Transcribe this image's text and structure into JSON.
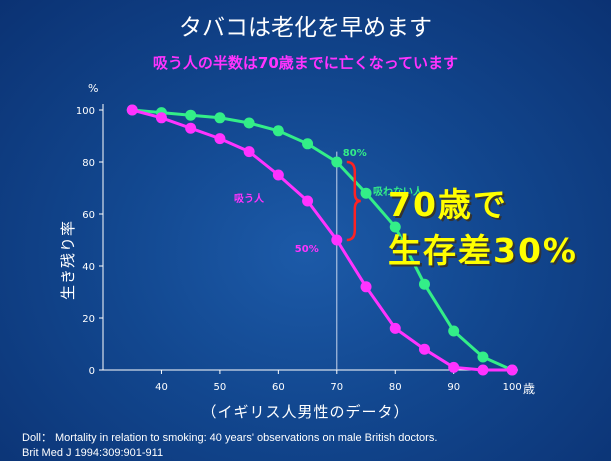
{
  "title": "タバコは老化を早めます",
  "subtitle": "吸う人の半数は70歳までに亡くなっています",
  "big_text": [
    "70歳で",
    "生存差30%"
  ],
  "note": "（イギリス人男性のデータ）",
  "source": [
    "Doll：  Mortality in relation to smoking: 40 years' observations on male British doctors.",
    "Brit Med J 1994:309:901-911"
  ],
  "colors": {
    "nonsmoker": "#33ee88",
    "smoker": "#ff33ff",
    "bracket": "#ff2222",
    "highlight": "#ffff00",
    "background": "#12478f"
  },
  "chart_data": {
    "type": "line",
    "ylabel": "生き残り率",
    "yunit": "%",
    "xunit": "歳",
    "xlim": [
      30,
      101
    ],
    "ylim": [
      0,
      100
    ],
    "xticks": [
      40,
      50,
      60,
      70,
      80,
      90,
      100
    ],
    "yticks": [
      0,
      20,
      40,
      60,
      80,
      100
    ],
    "grid": false,
    "series": [
      {
        "name": "吸わない人",
        "x": [
          35,
          40,
          45,
          50,
          55,
          60,
          65,
          70,
          75,
          80,
          85,
          90,
          95,
          100
        ],
        "y": [
          100,
          99,
          98,
          97,
          95,
          92,
          87,
          80,
          68,
          55,
          33,
          15,
          5,
          0
        ]
      },
      {
        "name": "吸う人",
        "x": [
          35,
          40,
          45,
          50,
          55,
          60,
          65,
          70,
          75,
          80,
          85,
          90,
          95,
          100
        ],
        "y": [
          100,
          97,
          93,
          89,
          84,
          75,
          65,
          50,
          32,
          16,
          8,
          1,
          0,
          0
        ]
      }
    ],
    "annotations": [
      {
        "text": "80%",
        "x": 70,
        "y": 80,
        "series": 0
      },
      {
        "text": "50%",
        "x": 70,
        "y": 50,
        "series": 1
      }
    ],
    "reference_x": 70
  }
}
